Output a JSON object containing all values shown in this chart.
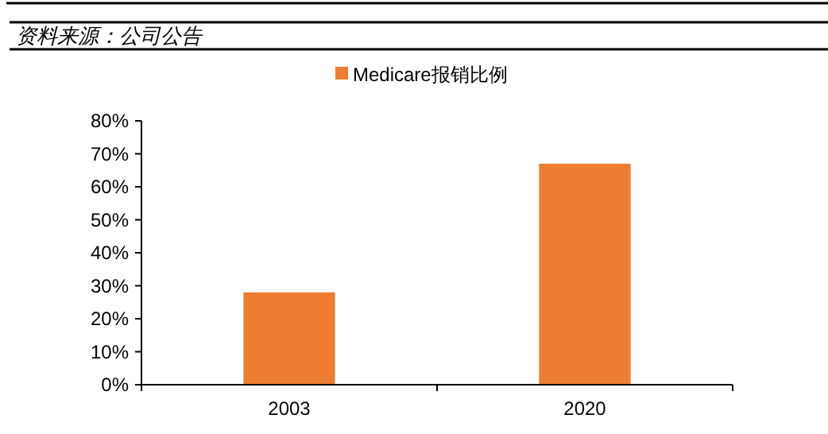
{
  "chart_data": {
    "type": "bar",
    "annotations": [
      "资料来源：公司公告"
    ],
    "categories": [
      "2003",
      "2020"
    ],
    "series": [
      {
        "name": "Medicare报销比例",
        "color": "#ed7d31",
        "values": [
          28,
          67
        ]
      }
    ],
    "ylim": [
      0,
      80
    ],
    "yticks": [
      {
        "value": 0,
        "label": "0%"
      },
      {
        "value": 10,
        "label": "10%"
      },
      {
        "value": 20,
        "label": "20%"
      },
      {
        "value": 30,
        "label": "30%"
      },
      {
        "value": 40,
        "label": "40%"
      },
      {
        "value": 50,
        "label": "50%"
      },
      {
        "value": 60,
        "label": "60%"
      },
      {
        "value": 70,
        "label": "70%"
      },
      {
        "value": 80,
        "label": "80%"
      }
    ],
    "grid": false,
    "legend": "top"
  }
}
